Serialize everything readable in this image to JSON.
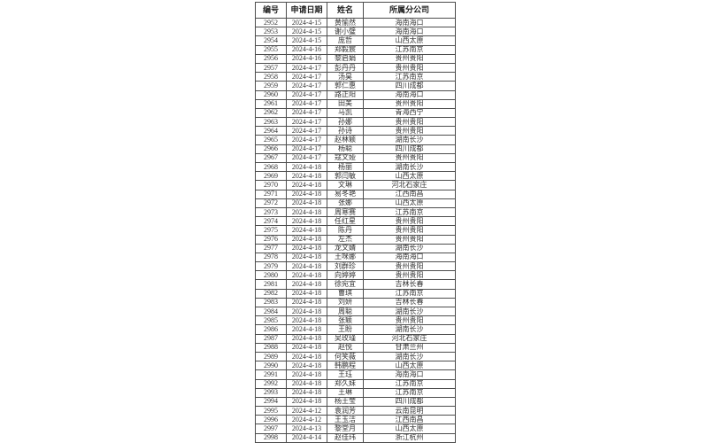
{
  "colors": {
    "background": "#ffffff",
    "border": "#4d4d4d",
    "text": "#333333",
    "header_text": "#1f1f1f"
  },
  "table": {
    "columns": [
      {
        "key": "id",
        "label": "编号"
      },
      {
        "key": "date",
        "label": "申请日期"
      },
      {
        "key": "name",
        "label": "姓名"
      },
      {
        "key": "branch",
        "label": "所属分公司"
      }
    ],
    "rows": [
      [
        "2952",
        "2024-4-15",
        "黄愉然",
        "海南海口"
      ],
      [
        "2953",
        "2024-4-15",
        "谢小璧",
        "海南海口"
      ],
      [
        "2954",
        "2024-4-15",
        "庞哲",
        "山西太原"
      ],
      [
        "2955",
        "2024-4-16",
        "郑毅宸",
        "江苏南京"
      ],
      [
        "2956",
        "2024-4-16",
        "黎启娟",
        "贵州贵阳"
      ],
      [
        "2957",
        "2024-4-17",
        "彭丹丹",
        "贵州贵阳"
      ],
      [
        "2958",
        "2024-4-17",
        "汤昊",
        "江苏南京"
      ],
      [
        "2959",
        "2024-4-17",
        "郭仁惠",
        "四川成都"
      ],
      [
        "2960",
        "2024-4-17",
        "路正阳",
        "海南海口"
      ],
      [
        "2961",
        "2024-4-17",
        "田美",
        "贵州贵阳"
      ],
      [
        "2962",
        "2024-4-17",
        "马凯",
        "青海西宁"
      ],
      [
        "2963",
        "2024-4-17",
        "孙娜",
        "贵州贵阳"
      ],
      [
        "2964",
        "2024-4-17",
        "孙诗",
        "贵州贵阳"
      ],
      [
        "2965",
        "2024-4-17",
        "赵林颖",
        "湖南长沙"
      ],
      [
        "2966",
        "2024-4-17",
        "杨聪",
        "四川成都"
      ],
      [
        "2967",
        "2024-4-17",
        "寇文娅",
        "贵州贵阳"
      ],
      [
        "2968",
        "2024-4-18",
        "杨丽",
        "湖南长沙"
      ],
      [
        "2969",
        "2024-4-18",
        "郭闫敏",
        "山西太原"
      ],
      [
        "2970",
        "2024-4-18",
        "文琳",
        "河北石家庄"
      ],
      [
        "2971",
        "2024-4-18",
        "易冬艳",
        "江西南昌"
      ],
      [
        "2972",
        "2024-4-18",
        "张娜",
        "山西太原"
      ],
      [
        "2973",
        "2024-4-18",
        "周寒赛",
        "江苏南京"
      ],
      [
        "2974",
        "2024-4-18",
        "任红星",
        "贵州贵阳"
      ],
      [
        "2975",
        "2024-4-18",
        "陈丹",
        "贵州贵阳"
      ],
      [
        "2976",
        "2024-4-18",
        "左杰",
        "贵州贵阳"
      ],
      [
        "2977",
        "2024-4-18",
        "龙文婧",
        "湖南长沙"
      ],
      [
        "2978",
        "2024-4-18",
        "王咪娜",
        "海南海口"
      ],
      [
        "2979",
        "2024-4-18",
        "刘群珍",
        "贵州贵阳"
      ],
      [
        "2980",
        "2024-4-18",
        "向婷婷",
        "贵州贵阳"
      ],
      [
        "2981",
        "2024-4-18",
        "徐宛宜",
        "吉林长春"
      ],
      [
        "2982",
        "2024-4-18",
        "曹琪",
        "江苏南京"
      ],
      [
        "2983",
        "2024-4-18",
        "刘妍",
        "吉林长春"
      ],
      [
        "2984",
        "2024-4-18",
        "周聪",
        "湖南长沙"
      ],
      [
        "2985",
        "2024-4-18",
        "张颖",
        "贵州贵阳"
      ],
      [
        "2986",
        "2024-4-18",
        "王盼",
        "湖南长沙"
      ],
      [
        "2987",
        "2024-4-18",
        "吴玫瑾",
        "河北石家庄"
      ],
      [
        "2988",
        "2024-4-18",
        "赵悦",
        "甘肃兰州"
      ],
      [
        "2989",
        "2024-4-18",
        "何笑薇",
        "湖南长沙"
      ],
      [
        "2990",
        "2024-4-18",
        "韩鹏程",
        "山西太原"
      ],
      [
        "2991",
        "2024-4-18",
        "王珏",
        "海南海口"
      ],
      [
        "2992",
        "2024-4-18",
        "郑久妹",
        "江苏南京"
      ],
      [
        "2993",
        "2024-4-18",
        "王琳",
        "江苏南京"
      ],
      [
        "2994",
        "2024-4-18",
        "杨王莹",
        "四川成都"
      ],
      [
        "2995",
        "2024-4-12",
        "袁润芳",
        "云南昆明"
      ],
      [
        "2996",
        "2024-4-12",
        "王玉洁",
        "江西南昌"
      ],
      [
        "2997",
        "2024-4-13",
        "黎堂月",
        "山西太原"
      ],
      [
        "2998",
        "2024-4-14",
        "赵佳玮",
        "浙江杭州"
      ]
    ]
  }
}
